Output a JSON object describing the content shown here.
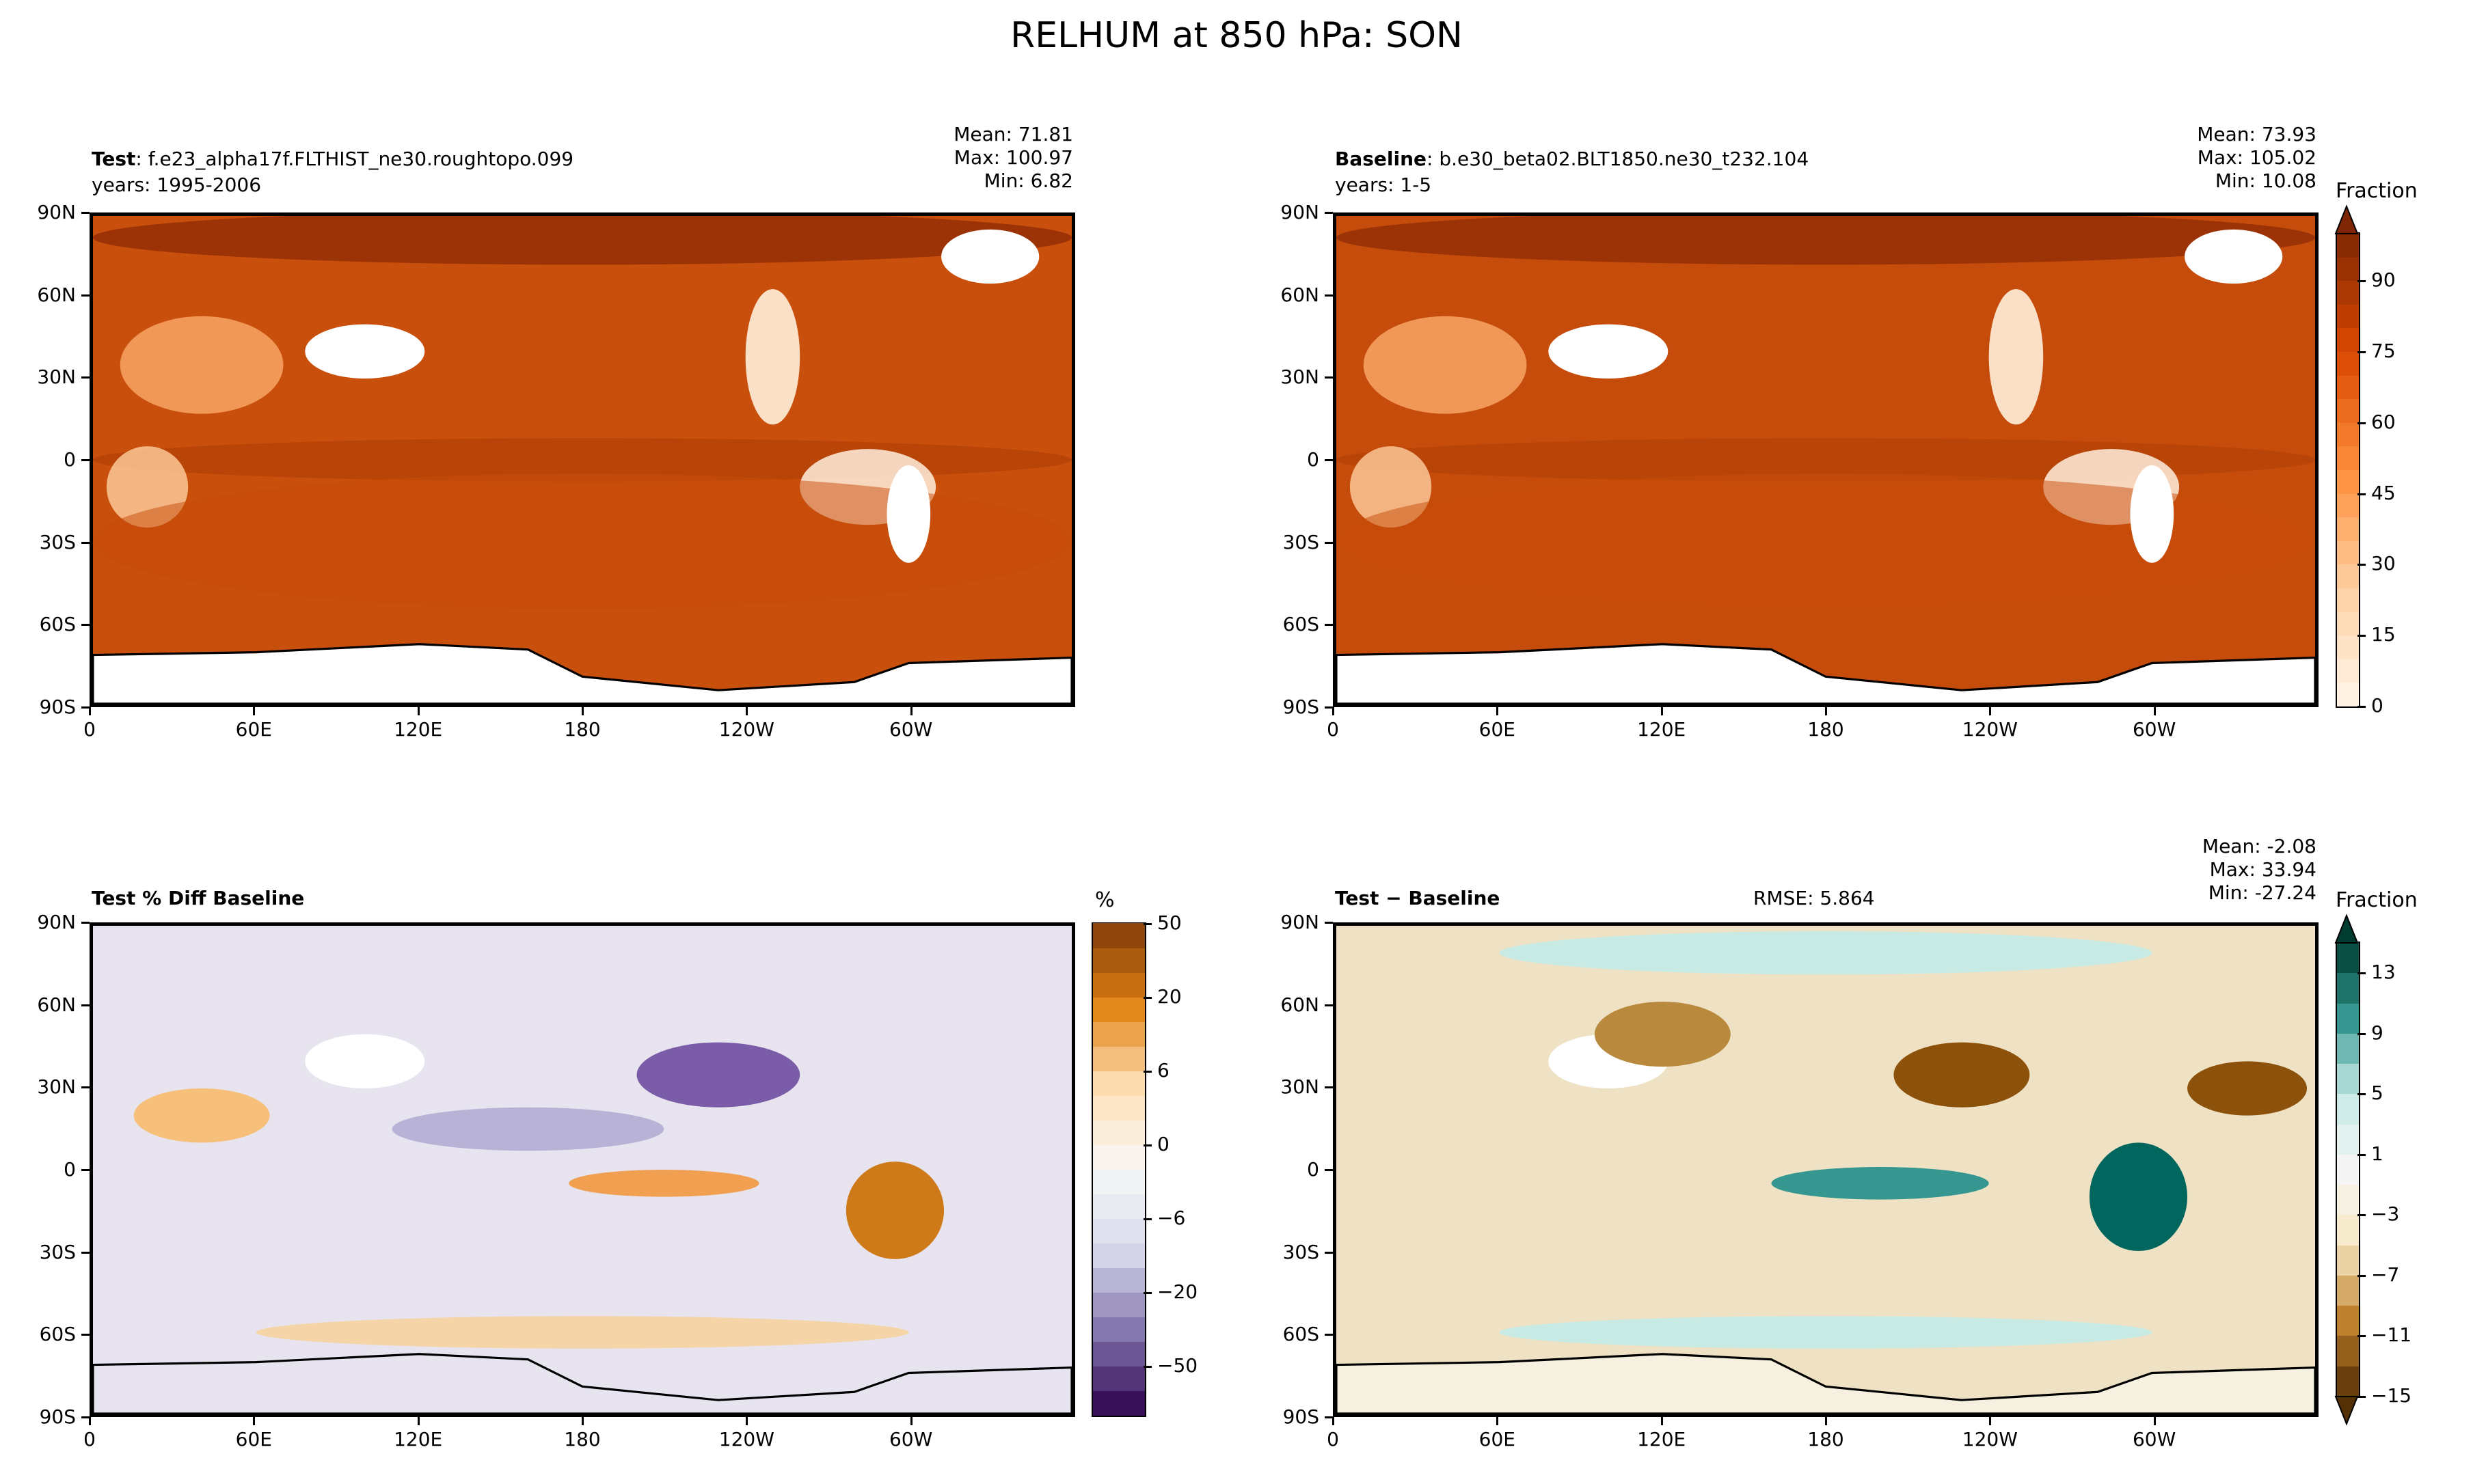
{
  "title": "RELHUM at 850 hPa: SON",
  "lat_ticks": [
    "90N",
    "60N",
    "30N",
    "0",
    "30S",
    "60S",
    "90S"
  ],
  "lon_ticks": [
    "0",
    "60E",
    "120E",
    "180",
    "120W",
    "60W"
  ],
  "chart_data": [
    {
      "type": "heatmap",
      "panel": "test",
      "label_bold": "Test",
      "label": ": f.e23_alpha17f.FLTHIST_ne30.roughtopo.099",
      "years": "years: 1995-2006",
      "stats": {
        "mean": "Mean: 71.81",
        "max": "Max: 100.97",
        "min": "Min:  6.82"
      },
      "colormap": "Oranges",
      "levels": [
        0,
        5,
        10,
        15,
        20,
        25,
        30,
        35,
        40,
        45,
        50,
        55,
        60,
        65,
        70,
        75,
        80,
        85,
        90,
        95,
        100
      ]
    },
    {
      "type": "heatmap",
      "panel": "baseline",
      "label_bold": "Baseline",
      "label": ": b.e30_beta02.BLT1850.ne30_t232.104",
      "years": "years: 1-5",
      "stats": {
        "mean": "Mean: 73.93",
        "max": "Max: 105.02",
        "min": "Min: 10.08"
      },
      "colorbar": {
        "title": "Fraction",
        "ticks": [
          "0",
          "15",
          "30",
          "45",
          "60",
          "75",
          "90"
        ],
        "tick_values": [
          0,
          15,
          30,
          45,
          60,
          75,
          90
        ],
        "extend": "max",
        "range": [
          0,
          100
        ]
      }
    },
    {
      "type": "heatmap",
      "panel": "pct-diff",
      "label_bold": "Test % Diff Baseline",
      "colormap": "PuOr_r",
      "colorbar": {
        "title": "%",
        "ticks": [
          "50",
          "20",
          "6",
          "0",
          "−6",
          "−20",
          "−50"
        ],
        "levels": [
          -50,
          -40,
          -30,
          -20,
          -15,
          -10,
          -8,
          -6,
          -4,
          -2,
          0,
          2,
          4,
          6,
          8,
          10,
          15,
          20,
          30,
          40,
          50
        ],
        "extend": "neither"
      }
    },
    {
      "type": "heatmap",
      "panel": "diff",
      "label_bold": "Test − Baseline",
      "rmse": "RMSE: 5.864",
      "stats": {
        "mean": "Mean: -2.08",
        "max": "Max: 33.94",
        "min": "Min: -27.24"
      },
      "colormap": "BrBG",
      "colorbar": {
        "title": "Fraction",
        "ticks": [
          "13",
          "9",
          "5",
          "1",
          "−3",
          "−7",
          "−11",
          "−15"
        ],
        "levels": [
          -15,
          -13,
          -11,
          -9,
          -7,
          -5,
          -3,
          -1,
          1,
          3,
          5,
          7,
          9,
          11,
          13,
          15
        ],
        "extend": "both"
      }
    }
  ]
}
